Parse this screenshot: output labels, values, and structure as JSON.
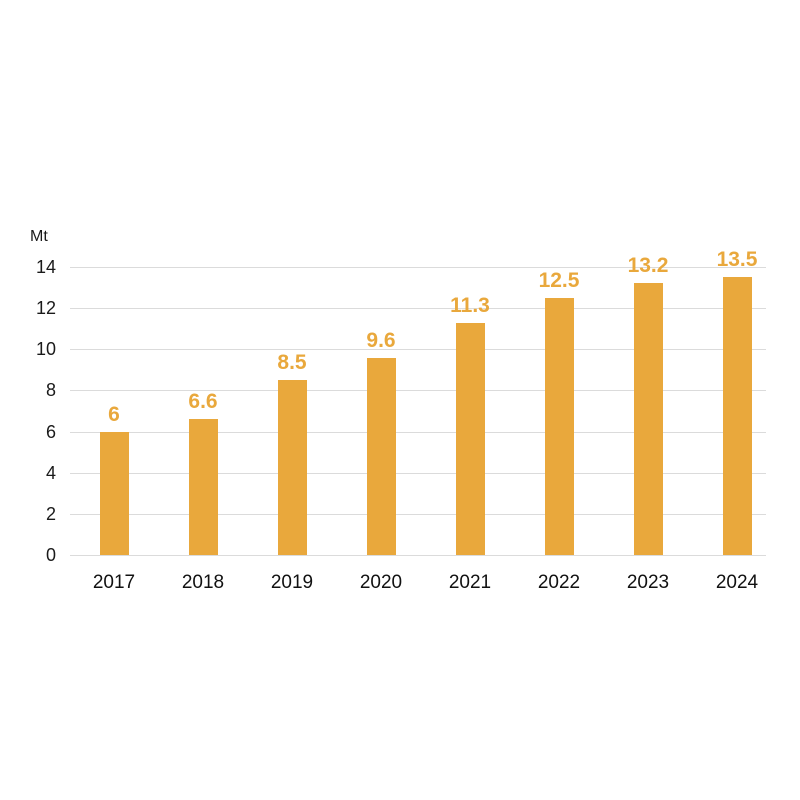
{
  "chart_data": {
    "type": "bar",
    "title": "",
    "ylabel": "Mt",
    "xlabel": "",
    "categories": [
      "2017",
      "2018",
      "2019",
      "2020",
      "2021",
      "2022",
      "2023",
      "2024"
    ],
    "values": [
      6,
      6.6,
      8.5,
      9.6,
      11.3,
      12.5,
      13.2,
      13.5
    ],
    "value_labels": [
      "6",
      "6.6",
      "8.5",
      "9.6",
      "11.3",
      "12.5",
      "13.2",
      "13.5"
    ],
    "yticks": [
      0,
      2,
      4,
      6,
      8,
      10,
      12,
      14
    ],
    "ylim": [
      0,
      14
    ],
    "grid": "horizontal",
    "legend": "none",
    "colors": {
      "bar": "#e9a83c",
      "value_label": "#e9a83c",
      "gridline": "#dbdbdb",
      "axis_text": "#1a1a1a"
    }
  }
}
